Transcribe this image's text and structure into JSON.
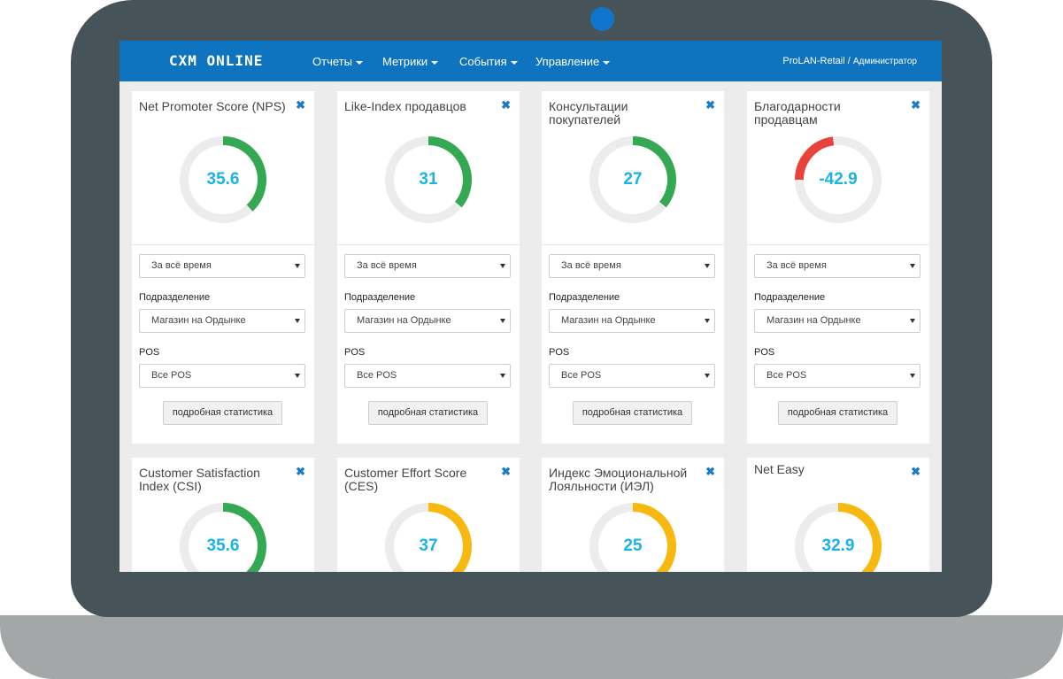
{
  "navbar": {
    "logo": "CXM ONLINE",
    "menu": [
      {
        "label": "Отчеты"
      },
      {
        "label": "Метрики"
      },
      {
        "label": "События"
      },
      {
        "label": "Управление"
      }
    ],
    "company": "ProLAN-Retail /",
    "role": "Администратор"
  },
  "colors": {
    "nav": "#0f74c0",
    "green": "#34a853",
    "red": "#e8433a",
    "yellow": "#f7b90f",
    "track": "#ececec",
    "value": "#1ab3e6"
  },
  "filters": {
    "period_value": "За всё время",
    "department_label": "Подразделение",
    "department_value": "Магазин на Ордынке",
    "pos_label": "POS",
    "pos_value": "Все POS",
    "details_button": "подробная статистика"
  },
  "cards": [
    {
      "title": "Net Promoter Score (NPS)",
      "value": "35.6",
      "color": "#34a853",
      "arc_from": 0.0,
      "arc_to": 0.38
    },
    {
      "title": "Like-Index продавцов",
      "value": "31",
      "color": "#34a853",
      "arc_from": 0.0,
      "arc_to": 0.36
    },
    {
      "title": "Консультации покупателей",
      "value": "27",
      "color": "#34a853",
      "arc_from": 0.0,
      "arc_to": 0.36
    },
    {
      "title": "Благодарности продавцам",
      "value": "-42.9",
      "color": "#e8433a",
      "arc_from": 0.75,
      "arc_to": 0.98
    },
    {
      "title": "Customer Satisfaction Index (CSI)",
      "value": "35.6",
      "color": "#34a853",
      "arc_from": 0.0,
      "arc_to": 0.38
    },
    {
      "title": "Customer Effort Score (CES)",
      "value": "37",
      "color": "#f7b90f",
      "arc_from": 0.0,
      "arc_to": 0.38
    },
    {
      "title": "Индекс Эмоциональной Лояльности (ИЭЛ)",
      "value": "25",
      "color": "#f7b90f",
      "arc_from": 0.0,
      "arc_to": 0.38
    },
    {
      "title": "Net Easy",
      "value": "32.9",
      "color": "#f7b90f",
      "arc_from": 0.0,
      "arc_to": 0.38
    }
  ]
}
